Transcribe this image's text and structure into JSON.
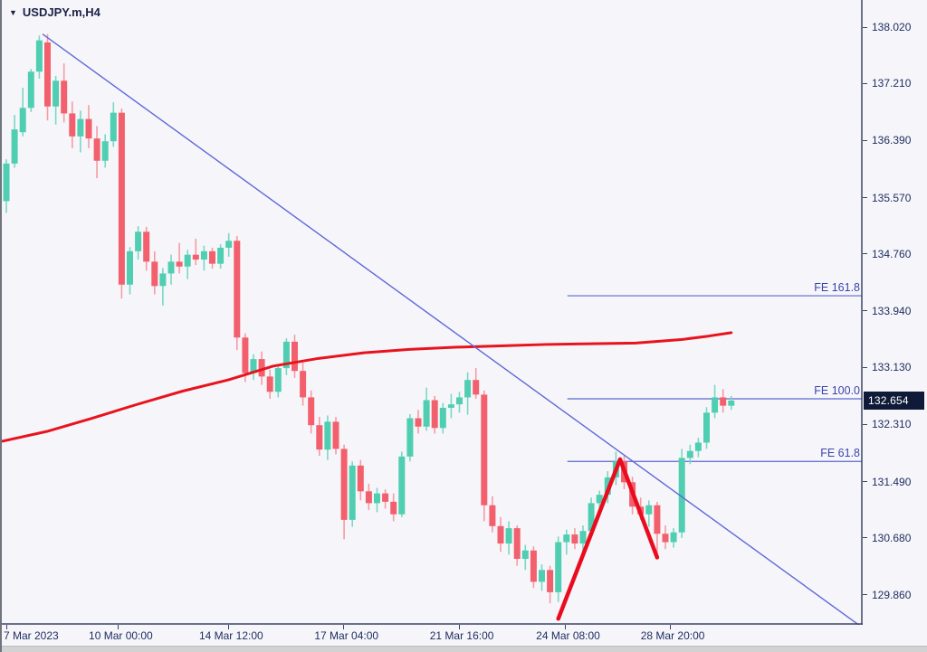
{
  "window": {
    "symbol_label": "USDJPY.m,H4",
    "dropdown_icon": "▼"
  },
  "colors": {
    "background": "#f6f6fa",
    "bull_body": "#4fceb1",
    "bull_wick": "#79d8c3",
    "bear_body": "#f2606d",
    "bear_wick": "#f59ba4",
    "ma_line": "#e8131d",
    "zigzag": "#ea0c1e",
    "trendline": "#5f68da",
    "fib_line": "#5b66cf",
    "fib_text": "#3b43ad",
    "axis_text": "#1c2b5e",
    "axis_line": "#3a4566",
    "price_box_bg": "#0e1a38",
    "price_box_text": "#ffffff"
  },
  "chart_data": {
    "type": "candlestick",
    "title": "USDJPY.m,H4",
    "symbol": "USDJPY.m",
    "timeframe": "H4",
    "ylim": [
      129.35,
      138.35
    ],
    "grid": false,
    "y_ticks": [
      "138.020",
      "137.210",
      "136.390",
      "135.570",
      "134.760",
      "133.940",
      "133.130",
      "132.310",
      "131.490",
      "130.680",
      "129.860"
    ],
    "x_ticks": [
      {
        "label": "7 Mar 2023",
        "i": 0
      },
      {
        "label": "10 Mar 00:00",
        "i": 13.5
      },
      {
        "label": "14 Mar 12:00",
        "i": 26.9
      },
      {
        "label": "17 Mar 04:00",
        "i": 40.9
      },
      {
        "label": "21 Mar 16:00",
        "i": 54.9
      },
      {
        "label": "24 Mar 08:00",
        "i": 67.8
      },
      {
        "label": "28 Mar 20:00",
        "i": 80.5
      }
    ],
    "current_price": "132.654",
    "candles": [
      [
        135.52,
        136.12,
        135.35,
        136.06
      ],
      [
        136.06,
        136.76,
        136.0,
        136.55
      ],
      [
        136.51,
        137.15,
        136.45,
        136.86
      ],
      [
        136.86,
        137.42,
        136.8,
        137.38
      ],
      [
        137.38,
        137.9,
        137.28,
        137.83
      ],
      [
        137.8,
        137.92,
        136.68,
        136.88
      ],
      [
        136.88,
        137.32,
        136.62,
        137.25
      ],
      [
        137.25,
        137.5,
        136.65,
        136.78
      ],
      [
        136.78,
        136.95,
        136.28,
        136.45
      ],
      [
        136.45,
        136.82,
        136.22,
        136.7
      ],
      [
        136.7,
        136.9,
        136.28,
        136.42
      ],
      [
        136.42,
        136.6,
        135.85,
        136.1
      ],
      [
        136.1,
        136.48,
        136.0,
        136.38
      ],
      [
        136.38,
        136.94,
        136.3,
        136.79
      ],
      [
        136.79,
        136.85,
        134.12,
        134.32
      ],
      [
        134.32,
        134.86,
        134.18,
        134.8
      ],
      [
        134.8,
        135.16,
        134.68,
        135.08
      ],
      [
        135.08,
        135.15,
        134.52,
        134.65
      ],
      [
        134.65,
        134.8,
        134.18,
        134.3
      ],
      [
        134.3,
        134.56,
        134.02,
        134.48
      ],
      [
        134.48,
        134.75,
        134.32,
        134.65
      ],
      [
        134.65,
        134.92,
        134.48,
        134.58
      ],
      [
        134.58,
        134.82,
        134.4,
        134.75
      ],
      [
        134.75,
        134.98,
        134.6,
        134.68
      ],
      [
        134.68,
        134.88,
        134.52,
        134.8
      ],
      [
        134.8,
        134.85,
        134.55,
        134.62
      ],
      [
        134.62,
        134.9,
        134.55,
        134.85
      ],
      [
        134.85,
        135.06,
        134.72,
        134.95
      ],
      [
        134.95,
        135.02,
        133.38,
        133.56
      ],
      [
        133.56,
        133.62,
        132.92,
        133.05
      ],
      [
        133.05,
        133.32,
        132.95,
        133.25
      ],
      [
        133.25,
        133.36,
        132.88,
        133.0
      ],
      [
        133.0,
        133.1,
        132.68,
        132.78
      ],
      [
        132.78,
        133.18,
        132.7,
        133.12
      ],
      [
        133.12,
        133.55,
        133.02,
        133.5
      ],
      [
        133.5,
        133.6,
        132.98,
        133.08
      ],
      [
        133.08,
        133.2,
        132.58,
        132.7
      ],
      [
        132.7,
        132.8,
        132.18,
        132.3
      ],
      [
        132.3,
        132.42,
        131.86,
        131.95
      ],
      [
        131.95,
        132.44,
        131.8,
        132.35
      ],
      [
        132.35,
        132.42,
        131.88,
        131.96
      ],
      [
        131.96,
        132.02,
        130.66,
        130.94
      ],
      [
        130.94,
        131.78,
        130.84,
        131.72
      ],
      [
        131.72,
        131.8,
        131.22,
        131.35
      ],
      [
        131.35,
        131.46,
        131.08,
        131.18
      ],
      [
        131.18,
        131.4,
        131.05,
        131.32
      ],
      [
        131.32,
        131.38,
        131.1,
        131.2
      ],
      [
        131.2,
        131.32,
        130.92,
        131.02
      ],
      [
        131.02,
        131.92,
        130.98,
        131.85
      ],
      [
        131.85,
        132.46,
        131.78,
        132.4
      ],
      [
        132.4,
        132.52,
        132.18,
        132.28
      ],
      [
        132.28,
        132.84,
        132.22,
        132.66
      ],
      [
        132.66,
        132.72,
        132.18,
        132.26
      ],
      [
        132.26,
        132.62,
        132.18,
        132.55
      ],
      [
        132.55,
        132.75,
        132.4,
        132.6
      ],
      [
        132.6,
        132.78,
        132.48,
        132.7
      ],
      [
        132.7,
        133.06,
        132.45,
        132.95
      ],
      [
        132.95,
        133.12,
        132.68,
        132.74
      ],
      [
        132.74,
        132.8,
        130.92,
        131.15
      ],
      [
        131.15,
        131.28,
        130.76,
        130.85
      ],
      [
        130.85,
        130.98,
        130.48,
        130.6
      ],
      [
        130.6,
        130.92,
        130.44,
        130.82
      ],
      [
        130.82,
        130.86,
        130.28,
        130.38
      ],
      [
        130.38,
        130.58,
        130.22,
        130.5
      ],
      [
        130.5,
        130.56,
        129.96,
        130.05
      ],
      [
        130.05,
        130.3,
        129.92,
        130.22
      ],
      [
        130.22,
        130.28,
        129.74,
        129.9
      ],
      [
        129.9,
        130.7,
        129.76,
        130.62
      ],
      [
        130.62,
        130.8,
        130.44,
        130.73
      ],
      [
        130.73,
        130.82,
        130.52,
        130.6
      ],
      [
        130.6,
        130.86,
        130.48,
        130.78
      ],
      [
        130.78,
        131.26,
        130.7,
        131.18
      ],
      [
        131.18,
        131.36,
        131.02,
        131.3
      ],
      [
        131.3,
        131.64,
        131.18,
        131.55
      ],
      [
        131.55,
        131.92,
        131.44,
        131.78
      ],
      [
        131.78,
        131.86,
        131.38,
        131.48
      ],
      [
        131.48,
        131.56,
        131.02,
        131.13
      ],
      [
        131.13,
        131.26,
        130.94,
        131.02
      ],
      [
        131.02,
        131.22,
        130.84,
        131.15
      ],
      [
        131.15,
        131.2,
        130.42,
        130.74
      ],
      [
        130.74,
        130.86,
        130.52,
        130.62
      ],
      [
        130.62,
        130.82,
        130.54,
        130.76
      ],
      [
        130.76,
        131.96,
        130.68,
        131.83
      ],
      [
        131.83,
        132.02,
        131.74,
        131.93
      ],
      [
        131.93,
        132.12,
        131.84,
        132.05
      ],
      [
        132.05,
        132.56,
        131.96,
        132.48
      ],
      [
        132.48,
        132.88,
        132.4,
        132.7
      ],
      [
        132.7,
        132.82,
        132.48,
        132.58
      ],
      [
        132.58,
        132.72,
        132.52,
        132.654
      ]
    ],
    "ma_line": {
      "name": "moving-average",
      "points": [
        [
          -0.5,
          132.07
        ],
        [
          4.9,
          132.21
        ],
        [
          10.4,
          132.4
        ],
        [
          15.9,
          132.6
        ],
        [
          21.4,
          132.79
        ],
        [
          26.9,
          132.95
        ],
        [
          32.4,
          133.15
        ],
        [
          37.9,
          133.26
        ],
        [
          43.4,
          133.34
        ],
        [
          48.9,
          133.39
        ],
        [
          54.4,
          133.42
        ],
        [
          59.9,
          133.44
        ],
        [
          65.4,
          133.46
        ],
        [
          70.9,
          133.47
        ],
        [
          76.4,
          133.48
        ],
        [
          81.9,
          133.53
        ],
        [
          85.2,
          133.58
        ],
        [
          88,
          133.63
        ]
      ]
    },
    "trendline": {
      "from": [
        4.4,
        137.92
      ],
      "to": [
        103.6,
        129.42
      ]
    },
    "zigzag": [
      [
        67,
        129.52
      ],
      [
        74.5,
        131.81
      ],
      [
        79,
        130.4
      ]
    ],
    "fib_extensions": {
      "from_i": 68.1,
      "to_i": 103.8,
      "levels": [
        {
          "label": "FE 161.8",
          "price": 134.16
        },
        {
          "label": "FE 100.0",
          "price": 132.68
        },
        {
          "label": "FE 61.8",
          "price": 131.78
        }
      ]
    }
  }
}
